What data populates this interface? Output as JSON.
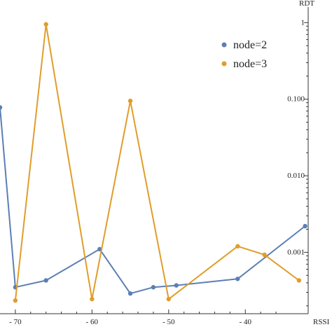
{
  "chart_data": {
    "type": "line",
    "title": "",
    "xlabel": "RSSI",
    "ylabel": "RDT",
    "y_scale": "log",
    "xlim": [
      -72,
      -31.8
    ],
    "ylim": [
      0.000158,
      1.6
    ],
    "x_ticks": [
      {
        "value": -70,
        "label": "- 70"
      },
      {
        "value": -60,
        "label": "- 60"
      },
      {
        "value": -50,
        "label": "- 50"
      },
      {
        "value": -40,
        "label": "- 40"
      }
    ],
    "y_ticks": [
      {
        "value": 1,
        "label": "1"
      },
      {
        "value": 0.1,
        "label": "0.100"
      },
      {
        "value": 0.01,
        "label": "0.010"
      },
      {
        "value": 0.001,
        "label": "0.001"
      }
    ],
    "grid": false,
    "legend_position": "top-right",
    "series": [
      {
        "name": "node=2",
        "color": "#5b7fb4",
        "points": [
          {
            "x": -72,
            "y": 0.078
          },
          {
            "x": -70,
            "y": 0.00035
          },
          {
            "x": -66,
            "y": 0.00043
          },
          {
            "x": -59,
            "y": 0.0011
          },
          {
            "x": -55,
            "y": 0.00029
          },
          {
            "x": -52,
            "y": 0.00035
          },
          {
            "x": -49,
            "y": 0.00037
          },
          {
            "x": -41,
            "y": 0.00045
          },
          {
            "x": -32.2,
            "y": 0.0022
          }
        ]
      },
      {
        "name": "node=3",
        "color": "#e09d2a",
        "points": [
          {
            "x": -70,
            "y": 0.000235
          },
          {
            "x": -66,
            "y": 0.95
          },
          {
            "x": -60,
            "y": 0.000245
          },
          {
            "x": -55,
            "y": 0.095
          },
          {
            "x": -50,
            "y": 0.000245
          },
          {
            "x": -41,
            "y": 0.0012
          },
          {
            "x": -37.5,
            "y": 0.00093
          },
          {
            "x": -33,
            "y": 0.00043
          }
        ]
      }
    ]
  }
}
